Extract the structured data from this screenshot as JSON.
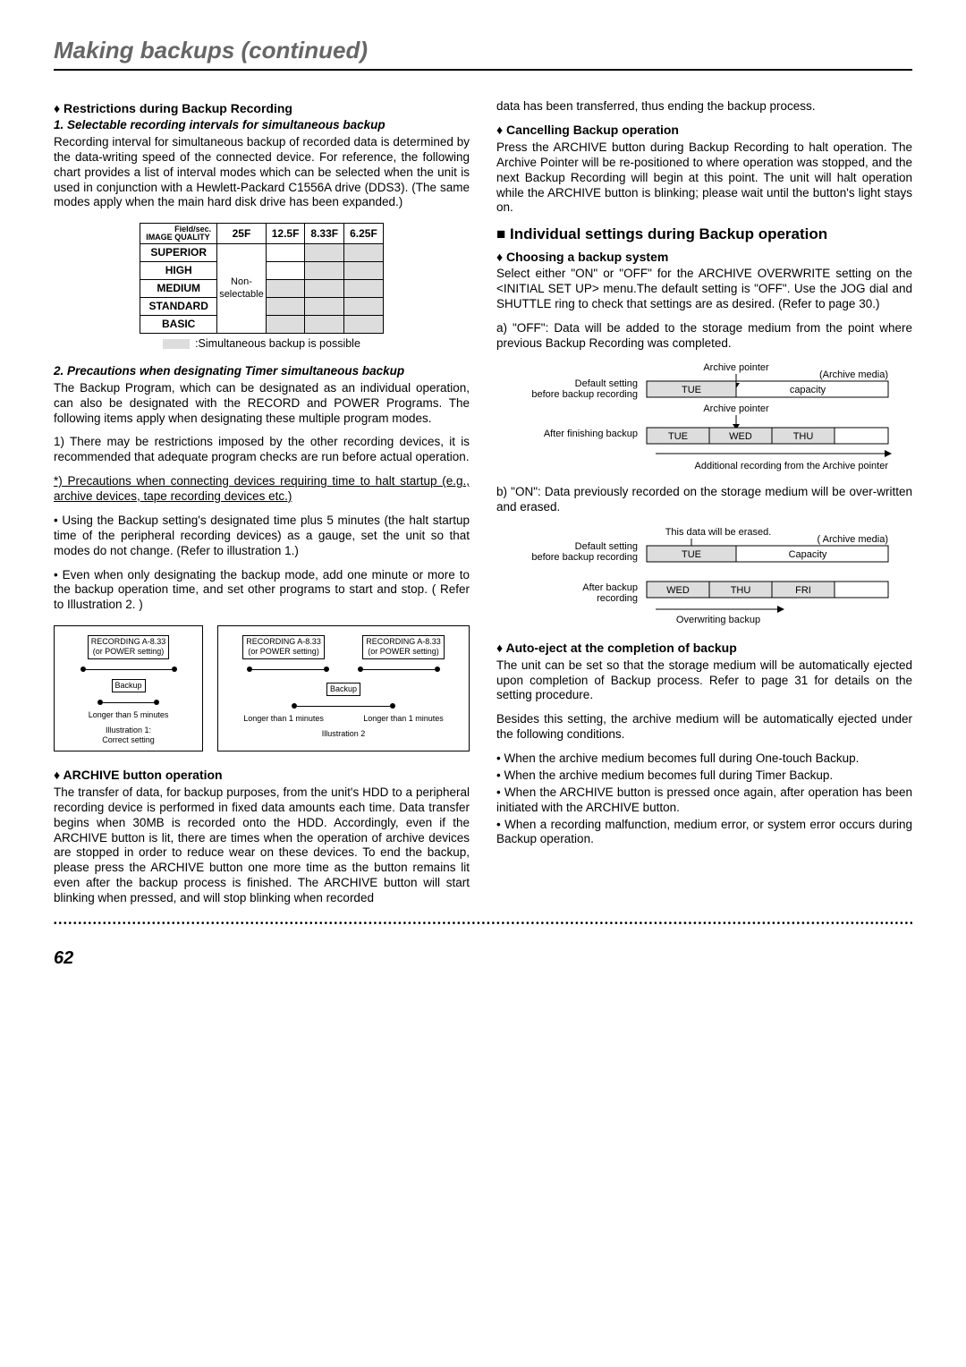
{
  "page": {
    "title": "Making backups (continued)",
    "number": "62"
  },
  "left": {
    "s1": {
      "h": "Restrictions during Backup Recording",
      "sub1": "1. Selectable recording intervals for simultaneous backup",
      "p1": "Recording interval for simultaneous backup of recorded data is determined by the data-writing speed of the connected device. For reference, the following chart provides a list of interval modes which can be selected when the unit is used in conjunction with a Hewlett-Packard C1556A drive (DDS3). (The same modes apply when the main hard disk drive has been expanded.)",
      "table_caption": ":Simultaneous backup is possible",
      "sub2": "2. Precautions when designating Timer simultaneous backup",
      "p2": "The Backup Program, which can be designated as an individual operation, can also be designated with the RECORD and POWER Programs. The following items apply when designating these multiple program modes.",
      "p3": "1) There may be restrictions imposed by the other recording devices, it is recommended that adequate program checks are run before actual operation.",
      "p4": "*) Precautions when connecting devices requiring time to halt startup (e.g., archive devices, tape recording devices etc.)",
      "p5": "• Using the Backup setting's designated time plus 5 minutes (the halt startup time of the peripheral recording devices) as a gauge, set the unit so that modes do not change. (Refer to illustration 1.)",
      "p6": "• Even when only designating the backup mode, add one minute or more to the backup operation time, and set other programs to start and stop. ( Refer to Illustration 2. )"
    },
    "table": {
      "corner1": "Field/sec.",
      "corner2": "IMAGE QUALITY",
      "cols": [
        "25F",
        "12.5F",
        "8.33F",
        "6.25F"
      ],
      "rows": [
        "SUPERIOR",
        "HIGH",
        "MEDIUM",
        "STANDARD",
        "BASIC"
      ],
      "nonsel": "Non-\nselectable"
    },
    "illus": {
      "rec": "RECORDING A-8.33\n(or POWER setting)",
      "backup": "Backup",
      "l1a": "Longer than 5 minutes",
      "l2a": "Longer than 1 minutes",
      "l2b": "Longer than 1 minutes",
      "cap1": "Illustration 1:\nCorrect setting",
      "cap2": "Illustration 2"
    },
    "s2": {
      "h": "ARCHIVE button operation",
      "p": "The transfer of data, for backup purposes, from the unit's HDD to a peripheral recording device is performed in fixed data amounts each time. Data transfer begins when 30MB is recorded onto the HDD. Accordingly, even if the ARCHIVE button is lit, there are times when the operation of archive devices are stopped in order to reduce wear on these devices. To end the backup, please press the ARCHIVE button one more time as the button remains lit even after the backup process is finished. The ARCHIVE button will start blinking when pressed, and will stop blinking when recorded"
    }
  },
  "right": {
    "p0": "data has been transferred, thus ending the backup process.",
    "s1": {
      "h": "Cancelling Backup operation",
      "p": "Press the ARCHIVE button during Backup Recording to halt operation. The Archive Pointer will be re-positioned to where operation was stopped, and the next Backup Recording will begin at this point. The unit will halt operation while the ARCHIVE button is blinking; please wait until the button's light stays on."
    },
    "s2": {
      "h": "Individual settings during Backup operation"
    },
    "s3": {
      "h": "Choosing a backup system",
      "p1": "Select either \"ON\" or \"OFF\" for the ARCHIVE OVERWRITE setting on the <INITIAL SET UP> menu.The default setting is \"OFF\". Use the JOG dial and SHUTTLE ring to check that settings are as desired. (Refer to page 30.)",
      "p2": "a) \"OFF\": Data will be added to the storage medium from the point where previous Backup Recording was completed.",
      "p3": "b) \"ON\": Data previously recorded on the storage medium will be over-written and erased."
    },
    "diag1": {
      "archive_media": "(Archive media)",
      "archive_pointer": "Archive pointer",
      "default": "Default setting\nbefore backup recording",
      "after": "After finishing backup",
      "tue": "TUE",
      "wed": "WED",
      "thu": "THU",
      "capacity": "capacity",
      "footer": "Additional recording from the Archive pointer"
    },
    "diag2": {
      "erased": "This data will be erased.",
      "archive_media": "( Archive media)",
      "default": "Default setting\nbefore backup recording",
      "after": "After backup\nrecording",
      "tue": "TUE",
      "wed": "WED",
      "thu": "THU",
      "fri": "FRI",
      "capacity": "Capacity",
      "overwrite": "Overwriting backup"
    },
    "s4": {
      "h": "Auto-eject at the completion of backup",
      "p1": "The unit can be set so that the storage medium will be automatically ejected upon completion of Backup process. Refer to page 31 for details on the setting procedure.",
      "p2": "Besides this setting, the archive medium will be automatically ejected under the following conditions.",
      "b1": "• When the archive medium becomes full during One-touch Backup.",
      "b2": "• When the archive medium becomes full during Timer Backup.",
      "b3": "• When the ARCHIVE button is pressed once again, after operation has been initiated with the ARCHIVE button.",
      "b4": "• When a recording malfunction, medium error, or system error occurs during Backup operation."
    }
  }
}
